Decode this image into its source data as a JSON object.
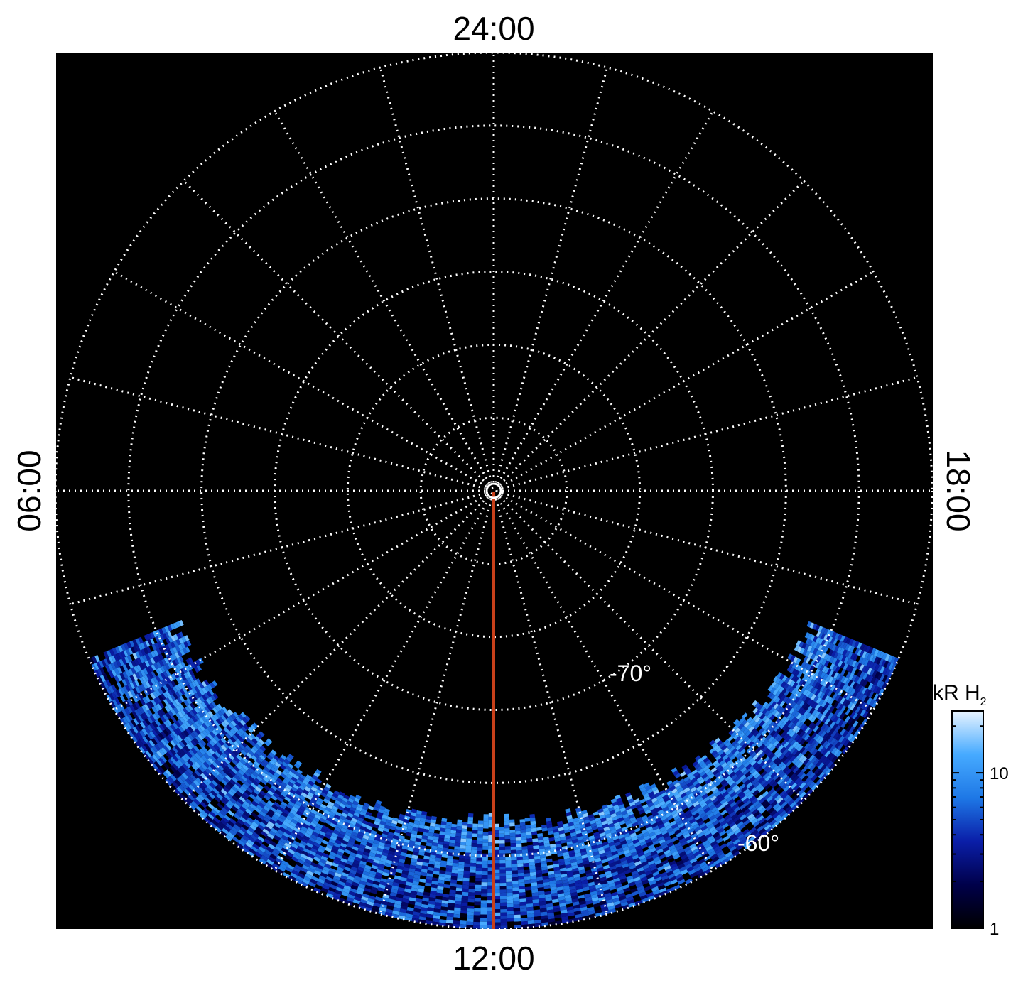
{
  "chart_data": {
    "type": "heatmap",
    "projection": "polar",
    "title": "",
    "local_time_labels": {
      "top": "24:00",
      "bottom": "12:00",
      "left": "06:00",
      "right": "18:00"
    },
    "latitude_labels": [
      {
        "text": "-70°",
        "latitude": -70
      },
      {
        "text": "-60°",
        "latitude": -60
      }
    ],
    "latitude_circles": [
      -90,
      -85,
      -80,
      -75,
      -70,
      -65,
      -60
    ],
    "meridian_step_hours": 1,
    "colorbar": {
      "title": "kR H",
      "title_subscript": "2",
      "scale": "log",
      "range": [
        1,
        25
      ],
      "ticks": [
        {
          "value": 1,
          "label": "1"
        },
        {
          "value": 10,
          "label": "10"
        }
      ],
      "colors": [
        "#000000",
        "#00004a",
        "#0a1ea8",
        "#1e78e6",
        "#46aaff",
        "#e8f4ff"
      ]
    },
    "emission_band": {
      "local_time_range_hours": [
        7.5,
        16.5
      ],
      "latitude_range": [
        -68,
        -60
      ],
      "brightness_range_kR": [
        1,
        25
      ]
    },
    "meridian_line": {
      "local_time_hours": 12,
      "color": "#c8401a"
    },
    "grid": true,
    "background": "#000000"
  }
}
